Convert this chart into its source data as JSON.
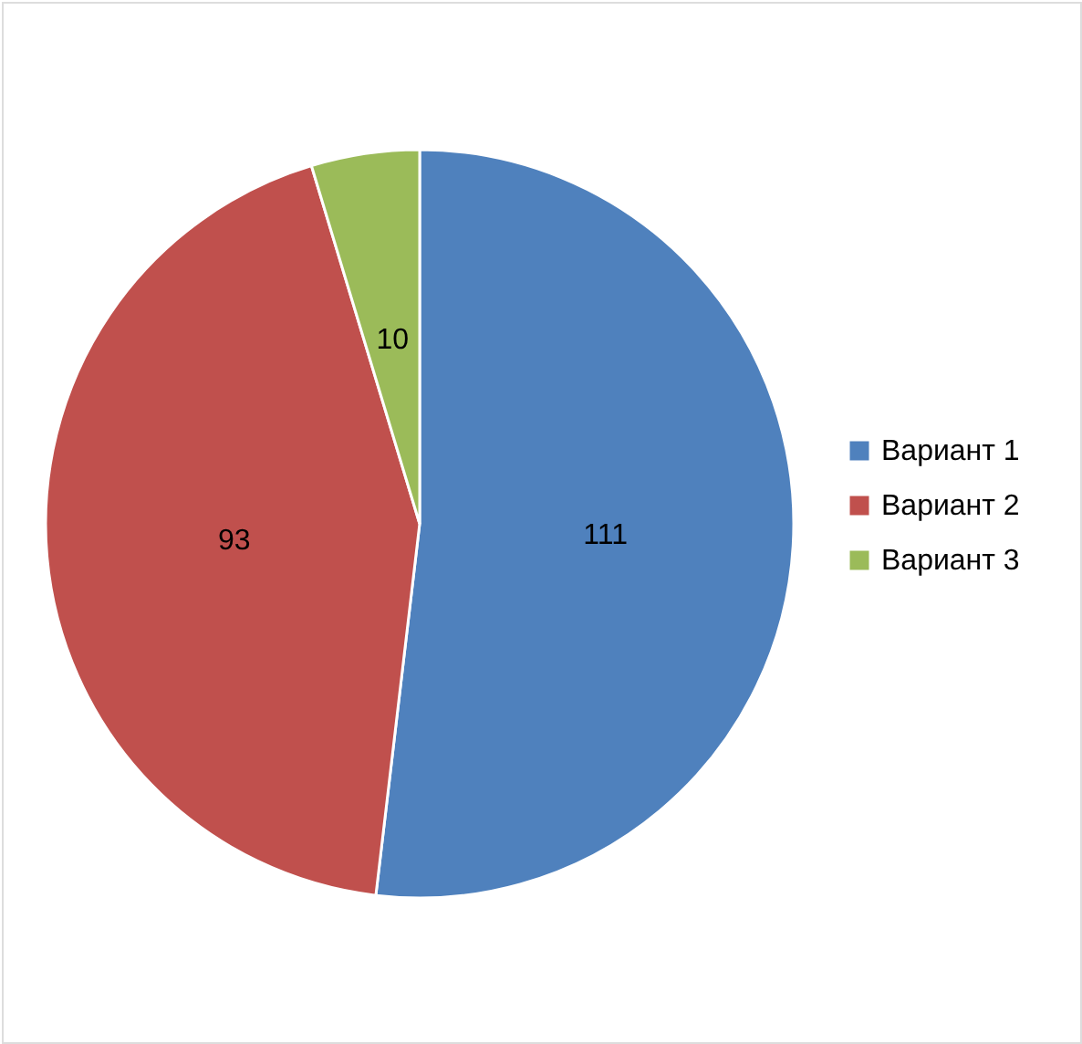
{
  "chart_data": {
    "type": "pie",
    "categories": [
      "Вариант 1",
      "Вариант 2",
      "Вариант 3"
    ],
    "values": [
      111,
      93,
      10
    ],
    "colors": [
      "#4f81bd",
      "#c0504d",
      "#9bbb59"
    ],
    "data_labels": true,
    "legend": "right"
  }
}
